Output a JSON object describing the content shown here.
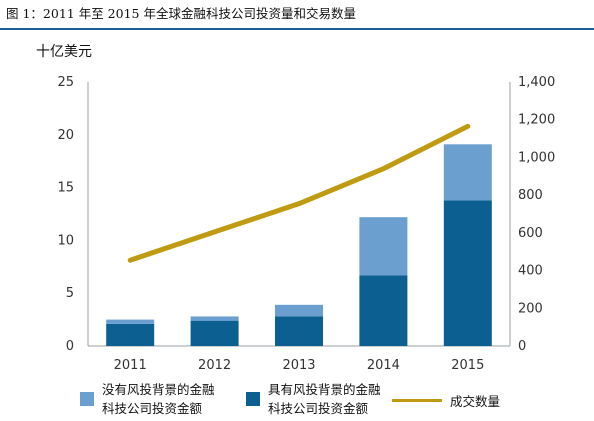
{
  "title": "图 1：2011 年至 2015 年全球金融科技公司投资量和交易数量",
  "chart_data": {
    "type": "bar",
    "categories": [
      "2011",
      "2012",
      "2013",
      "2014",
      "2015"
    ],
    "series": [
      {
        "name": "具有风投背景的金融科技公司投资金额",
        "kind": "bar",
        "axis": "left",
        "stack": "invest",
        "color": "#0b5f91",
        "values": [
          2.1,
          2.4,
          2.8,
          6.7,
          13.8
        ]
      },
      {
        "name": "没有风投背景的金融科技公司投资金额",
        "kind": "bar",
        "axis": "left",
        "stack": "invest",
        "color": "#6a9fd0",
        "values": [
          0.4,
          0.4,
          1.1,
          5.5,
          5.3
        ]
      },
      {
        "name": "成交数量",
        "kind": "line",
        "axis": "right",
        "color": "#c09a10",
        "values": [
          455,
          605,
          755,
          940,
          1165
        ]
      }
    ],
    "left_axis": {
      "unit_label": "十亿美元",
      "ylim": [
        0,
        25
      ],
      "ticks": [
        "0",
        "5",
        "10",
        "15",
        "20",
        "25"
      ]
    },
    "right_axis": {
      "ylim": [
        0,
        1400
      ],
      "ticks": [
        "0",
        "200",
        "400",
        "600",
        "800",
        "1,000",
        "1,200",
        "1,400"
      ]
    },
    "grid": false,
    "legend": {
      "placement": "bottom",
      "items": [
        {
          "lines": [
            "没有风投背景的金融",
            "科技公司投资金额"
          ],
          "color": "#6a9fd0"
        },
        {
          "lines": [
            "具有风投背景的金融",
            "科技公司投资金额"
          ],
          "color": "#0b5f91"
        },
        {
          "lines": [
            "成交数量"
          ],
          "color": "#c09a10"
        }
      ]
    },
    "colors": {
      "title_rule": "#1a5f9a",
      "axis": "#9aa0a6",
      "tick_text": "#333333"
    }
  }
}
